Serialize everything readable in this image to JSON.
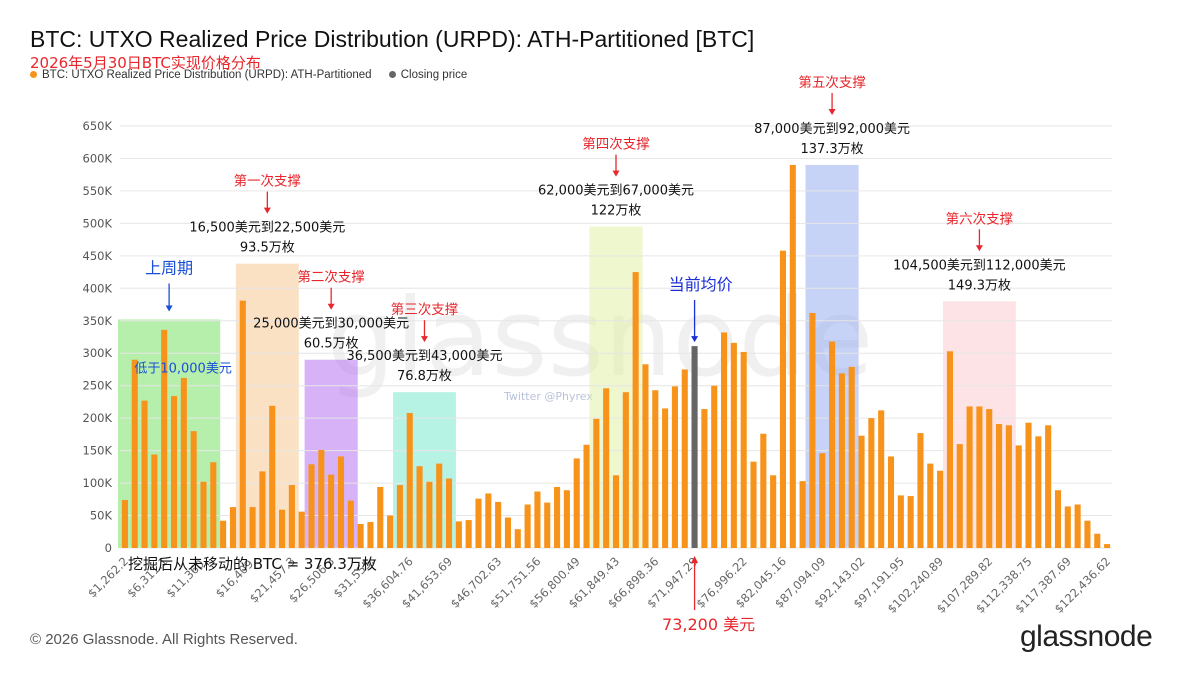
{
  "title": "BTC: UTXO Realized Price Distribution (URPD): ATH-Partitioned [BTC]",
  "subtitle": "2026年5月30日BTC实现价格分布",
  "legend": [
    {
      "label": "BTC: UTXO Realized Price Distribution (URPD): ATH-Partitioned",
      "color": "#f7931a"
    },
    {
      "label": "Closing price",
      "color": "#666666"
    }
  ],
  "copyright": "© 2026 Glassnode. All Rights Reserved.",
  "logo": "glassnode",
  "watermark": "glassnode",
  "twitter_handle": "Twitter @Phyrex",
  "chart_data": {
    "type": "bar",
    "x_tick_labels": [
      "$1,262.2",
      "$6,311.1",
      "$11,360.",
      "$16,409.",
      "$21,457.3",
      "$26,506.3",
      "$31,555.",
      "$36,604.76",
      "$41,653.69",
      "$46,702.63",
      "$51,751.56",
      "$56,800.49",
      "$61,849.43",
      "$66,898.36",
      "$71,947.29",
      "$76,996.22",
      "$82,045.16",
      "$87,094.09",
      "$92,143.02",
      "$97,191.95",
      "$102,240.89",
      "$107,289.82",
      "$112,338.75",
      "$117,387.69",
      "$122,436.62"
    ],
    "y_ticks": [
      "0",
      "50K",
      "100K",
      "150K",
      "200K",
      "250K",
      "300K",
      "350K",
      "400K",
      "450K",
      "500K",
      "550K",
      "600K",
      "650K"
    ],
    "ylim": [
      0,
      650000
    ],
    "values": [
      74000,
      290000,
      227000,
      144000,
      336000,
      234000,
      262000,
      180000,
      102000,
      132000,
      42000,
      63000,
      381000,
      63000,
      118000,
      219000,
      59000,
      97000,
      56000,
      129000,
      151000,
      113000,
      141000,
      73000,
      37000,
      40000,
      94000,
      50000,
      97000,
      208000,
      126000,
      102000,
      130000,
      107000,
      41000,
      43000,
      76000,
      84000,
      71000,
      47000,
      29000,
      67000,
      87000,
      70000,
      94000,
      89000,
      138000,
      159000,
      199000,
      246000,
      112000,
      240000,
      425000,
      283000,
      243000,
      215000,
      249000,
      275000,
      311000,
      214000,
      250000,
      332000,
      316000,
      302000,
      133000,
      176000,
      112000,
      458000,
      590000,
      103000,
      362000,
      146000,
      318000,
      269000,
      279000,
      173000,
      200000,
      212000,
      141000,
      81000,
      80000,
      177000,
      130000,
      119000,
      303000,
      160000,
      218000,
      218000,
      214000,
      191000,
      189000,
      158000,
      193000,
      172000,
      189000,
      89000,
      64000,
      67000,
      42000,
      22000,
      6000
    ],
    "closing_price_bar_index": 58,
    "bar_color": "#f7931a",
    "closing_price_color": "#666666",
    "zones": [
      {
        "start": 0,
        "end": 9,
        "top": 352000,
        "color": "#6ee05a",
        "title": "上周期",
        "title_color": "#1a4fd6",
        "range": "低于10,000美元",
        "amount": "",
        "label_color": "#1a4fd6"
      },
      {
        "start": 12,
        "end": 17,
        "top": 438000,
        "color": "#f7c48a",
        "title": "第一次支撑",
        "title_color": "#e8262c",
        "range": "16,500美元到22,500美元",
        "amount": "93.5万枚",
        "label_color": "#111111"
      },
      {
        "start": 19,
        "end": 23,
        "top": 290000,
        "color": "#b066f0",
        "title": "第二次支撑",
        "title_color": "#e8262c",
        "range": "25,000美元到30,000美元",
        "amount": "60.5万枚",
        "label_color": "#111111"
      },
      {
        "start": 28,
        "end": 33,
        "top": 240000,
        "color": "#6fe8cc",
        "title": "第三次支撑",
        "title_color": "#e8262c",
        "range": "36,500美元到43,000美元",
        "amount": "76.8万枚",
        "label_color": "#111111"
      },
      {
        "start": 48,
        "end": 52,
        "top": 495000,
        "color": "#dff0a0",
        "title": "第四次支撑",
        "title_color": "#e8262c",
        "range": "62,000美元到67,000美元",
        "amount": "122万枚",
        "label_color": "#111111"
      },
      {
        "start": 70,
        "end": 74,
        "top": 590000,
        "color": "#8fa6f0",
        "title": "第五次支撑",
        "title_color": "#e8262c",
        "range": "87,000美元到92,000美元",
        "amount": "137.3万枚",
        "label_color": "#111111"
      },
      {
        "start": 84,
        "end": 90,
        "top": 380000,
        "color": "#fbc7cc",
        "title": "第六次支撑",
        "title_color": "#e8262c",
        "range": "104,500美元到112,000美元",
        "amount": "149.3万枚",
        "label_color": "#111111"
      }
    ],
    "annotations": {
      "current_avg_label": "当前均价",
      "current_avg_color": "#1a2fd6",
      "closing_price_label": "73,200 美元",
      "closing_price_label_color": "#e8262c",
      "unmoved_label": "挖掘后从未移动的 BTC = 376.3万枚"
    }
  }
}
